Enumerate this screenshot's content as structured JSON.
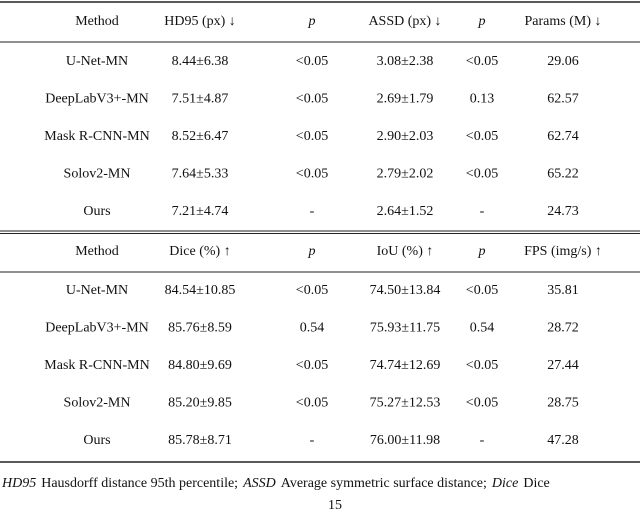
{
  "tables": [
    {
      "header": [
        "Method",
        "HD95 (px) ↓",
        "p",
        "ASSD (px) ↓",
        "p",
        "Params (M) ↓"
      ],
      "rows": [
        [
          "U-Net-MN",
          "8.44±6.38",
          "<0.05",
          "3.08±2.38",
          "<0.05",
          "29.06"
        ],
        [
          "DeepLabV3+-MN",
          "7.51±4.87",
          "<0.05",
          "2.69±1.79",
          "0.13",
          "62.57"
        ],
        [
          "Mask R-CNN-MN",
          "8.52±6.47",
          "<0.05",
          "2.90±2.03",
          "<0.05",
          "62.74"
        ],
        [
          "Solov2-MN",
          "7.64±5.33",
          "<0.05",
          "2.79±2.02",
          "<0.05",
          "65.22"
        ],
        [
          "Ours",
          "7.21±4.74",
          "-",
          "2.64±1.52",
          "-",
          "24.73"
        ]
      ]
    },
    {
      "header": [
        "Method",
        "Dice (%) ↑",
        "p",
        "IoU (%) ↑",
        "p",
        "FPS (img/s) ↑"
      ],
      "rows": [
        [
          "U-Net-MN",
          "84.54±10.85",
          "<0.05",
          "74.50±13.84",
          "<0.05",
          "35.81"
        ],
        [
          "DeepLabV3+-MN",
          "85.76±8.59",
          "0.54",
          "75.93±11.75",
          "0.54",
          "28.72"
        ],
        [
          "Mask R-CNN-MN",
          "84.80±9.69",
          "<0.05",
          "74.74±12.69",
          "<0.05",
          "27.44"
        ],
        [
          "Solov2-MN",
          "85.20±9.85",
          "<0.05",
          "75.27±12.53",
          "<0.05",
          "28.75"
        ],
        [
          "Ours",
          "85.78±8.71",
          "-",
          "76.00±11.98",
          "-",
          "47.28"
        ]
      ]
    }
  ],
  "footnote": [
    {
      "term": "HD95",
      "definition": "Hausdorff distance 95th percentile;"
    },
    {
      "term": "ASSD",
      "definition": "Average symmetric surface distance;"
    },
    {
      "term": "Dice",
      "definition": "Dice"
    }
  ],
  "page_number": "15"
}
